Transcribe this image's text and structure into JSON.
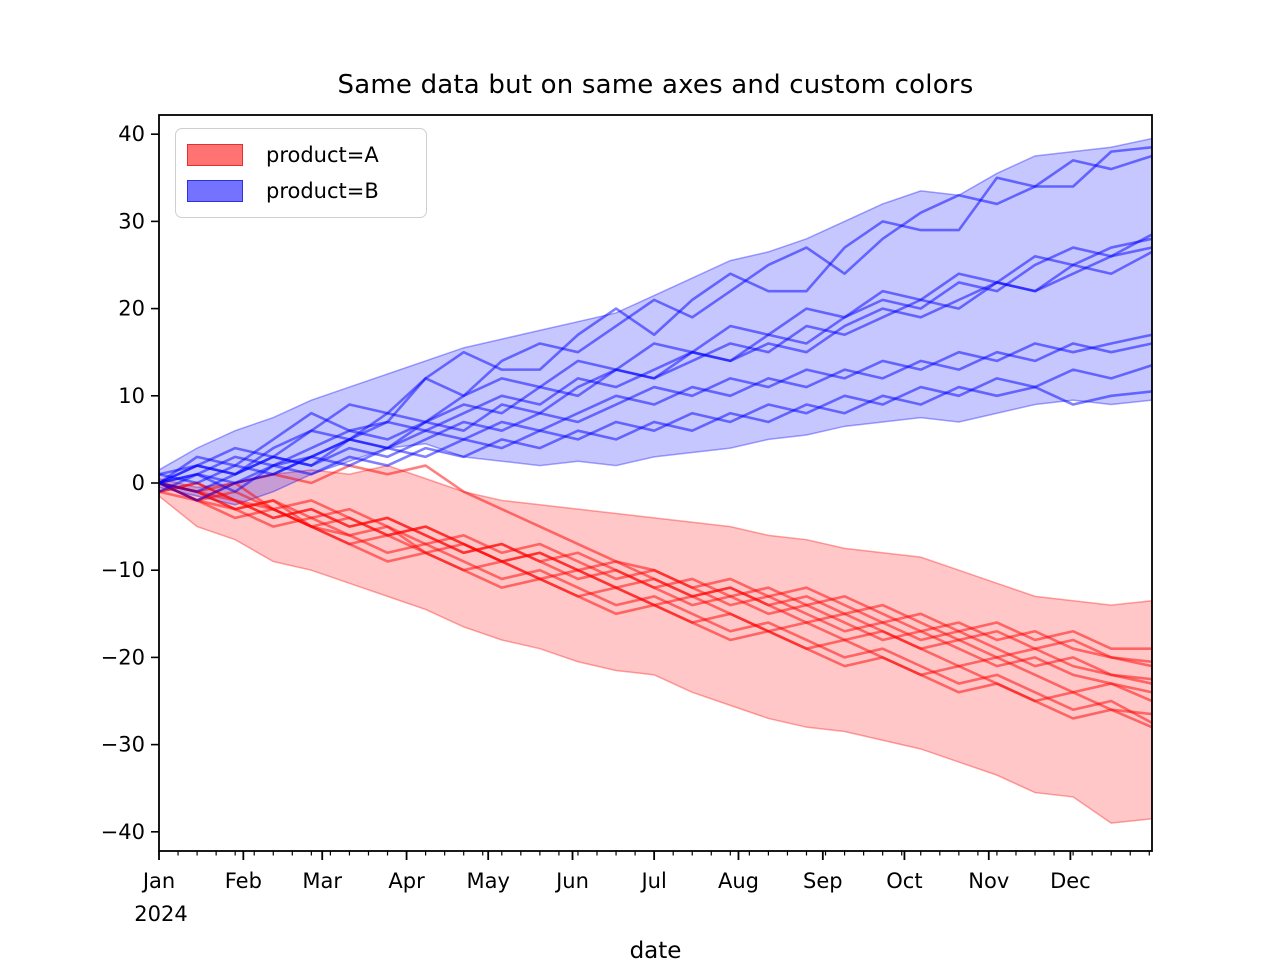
{
  "title": "Same data but on same axes and custom colors",
  "legend": {
    "items": [
      {
        "label": "product=A",
        "color": "#ff0000"
      },
      {
        "label": "product=B",
        "color": "#0000ff"
      }
    ]
  },
  "chart_data": {
    "type": "line",
    "title": "Same data but on same axes and custom colors",
    "xlabel": "date",
    "ylabel": "",
    "x_tick_year": "2024",
    "x_tick_months": [
      "Jan",
      "Feb",
      "Mar",
      "Apr",
      "May",
      "Jun",
      "Jul",
      "Aug",
      "Sep",
      "Oct",
      "Nov",
      "Dec"
    ],
    "month_start_days": [
      0,
      31,
      60,
      91,
      121,
      152,
      182,
      213,
      244,
      274,
      305,
      335
    ],
    "minor_tick_interval_days": 7,
    "xlim_days": [
      0,
      365
    ],
    "ylim": [
      -42.2,
      42.2
    ],
    "yticks": [
      -40,
      -30,
      -20,
      -10,
      0,
      10,
      20,
      30,
      40
    ],
    "x_days": [
      0,
      14,
      28,
      42,
      56,
      70,
      84,
      98,
      112,
      126,
      140,
      154,
      168,
      182,
      196,
      210,
      224,
      238,
      252,
      266,
      280,
      294,
      308,
      322,
      336,
      350,
      365
    ],
    "series": [
      {
        "name": "product=A",
        "color": "#ff0000",
        "band_alpha": 0.22,
        "line_alpha": 0.5,
        "band": {
          "upper": [
            0.5,
            -0.5,
            0,
            1,
            1.5,
            1,
            2,
            0.5,
            -1,
            -2,
            -2.5,
            -3,
            -3.5,
            -4,
            -4.5,
            -5,
            -6,
            -6.5,
            -7.5,
            -8,
            -8.5,
            -10,
            -11.5,
            -13,
            -13.5,
            -14,
            -13.5
          ],
          "lower": [
            -1.5,
            -5,
            -6.5,
            -9,
            -10,
            -11.5,
            -13,
            -14.5,
            -16.5,
            -18,
            -19,
            -20.5,
            -21.5,
            -22,
            -24,
            -25.5,
            -27,
            -28,
            -28.5,
            -29.5,
            -30.5,
            -32,
            -33.5,
            -35.5,
            -36,
            -39,
            -38.5
          ]
        },
        "lines": [
          [
            0,
            -1,
            -3,
            -2,
            -4,
            -3,
            -5,
            -7,
            -6,
            -8,
            -7,
            -9,
            -11,
            -10,
            -12,
            -11,
            -13,
            -12,
            -14,
            -16,
            -15,
            -17,
            -16,
            -18,
            -17,
            -19,
            -19
          ],
          [
            -1,
            0,
            -2,
            -4,
            -3,
            -5,
            -4,
            -6,
            -8,
            -7,
            -9,
            -8,
            -10,
            -12,
            -11,
            -13,
            -12,
            -14,
            -13,
            -15,
            -17,
            -16,
            -18,
            -17,
            -19,
            -20,
            -20.5
          ],
          [
            0,
            -2,
            -1,
            -3,
            -5,
            -4,
            -6,
            -5,
            -7,
            -9,
            -8,
            -10,
            -9,
            -11,
            -13,
            -12,
            -14,
            -13,
            -15,
            -14,
            -16,
            -18,
            -17,
            -19,
            -18,
            -20,
            -21
          ],
          [
            0,
            -1,
            0,
            1,
            0,
            2,
            1,
            2,
            -1,
            -3,
            -5,
            -7,
            -9,
            -10,
            -12,
            -14,
            -13,
            -15,
            -17,
            -16,
            -18,
            -17,
            -19,
            -21,
            -20,
            -22,
            -22.5
          ],
          [
            -1,
            -2,
            0,
            -3,
            -2,
            -4,
            -6,
            -5,
            -7,
            -9,
            -8,
            -10,
            -12,
            -11,
            -13,
            -12,
            -14,
            -16,
            -15,
            -17,
            -19,
            -18,
            -20,
            -19,
            -21,
            -22,
            -23
          ],
          [
            0,
            -1,
            -2,
            -4,
            -3,
            -5,
            -4,
            -6,
            -8,
            -7,
            -9,
            -11,
            -10,
            -12,
            -14,
            -13,
            -15,
            -14,
            -16,
            -18,
            -17,
            -19,
            -21,
            -20,
            -22,
            -23,
            -24
          ],
          [
            0,
            -2,
            -3,
            -2,
            -5,
            -6,
            -5,
            -8,
            -7,
            -9,
            -11,
            -10,
            -12,
            -14,
            -13,
            -15,
            -17,
            -16,
            -18,
            -17,
            -19,
            -21,
            -20,
            -22,
            -24,
            -23,
            -25
          ],
          [
            -1,
            0,
            -2,
            -3,
            -5,
            -7,
            -6,
            -8,
            -10,
            -9,
            -11,
            -13,
            -12,
            -14,
            -16,
            -15,
            -17,
            -19,
            -18,
            -20,
            -22,
            -21,
            -23,
            -25,
            -24,
            -26,
            -26.5
          ],
          [
            0,
            -1,
            -3,
            -5,
            -4,
            -6,
            -8,
            -7,
            -9,
            -11,
            -10,
            -12,
            -14,
            -13,
            -15,
            -17,
            -16,
            -18,
            -20,
            -19,
            -21,
            -23,
            -22,
            -24,
            -26,
            -25,
            -27.5
          ],
          [
            0,
            -2,
            -4,
            -3,
            -5,
            -7,
            -9,
            -8,
            -10,
            -12,
            -11,
            -13,
            -15,
            -14,
            -16,
            -18,
            -17,
            -19,
            -21,
            -20,
            -22,
            -24,
            -23,
            -25,
            -27,
            -26,
            -28
          ]
        ]
      },
      {
        "name": "product=B",
        "color": "#0000ff",
        "band_alpha": 0.22,
        "line_alpha": 0.5,
        "band": {
          "upper": [
            1.5,
            4,
            6,
            7.5,
            9.5,
            11,
            12.5,
            14,
            15.5,
            16.5,
            17.5,
            18.5,
            19.5,
            21.5,
            23.5,
            25.5,
            26.5,
            28,
            30,
            32,
            33.5,
            33,
            35.5,
            37.5,
            38,
            38.5,
            39.5
          ],
          "lower": [
            -0.5,
            -1.5,
            -2.5,
            -1,
            1,
            2.5,
            4,
            4.5,
            3,
            2.5,
            2,
            2.5,
            2,
            3,
            3.5,
            4,
            5,
            5.5,
            6.5,
            7,
            7.5,
            7,
            8,
            9,
            9.5,
            9,
            9.5
          ]
        },
        "lines": [
          [
            0,
            3,
            2,
            5,
            8,
            6,
            7,
            12,
            15,
            13,
            13,
            17,
            20,
            17,
            21,
            24,
            22,
            22,
            27,
            30,
            29,
            29,
            35,
            34,
            34,
            38,
            38.5
          ],
          [
            1,
            2,
            4,
            3,
            6,
            9,
            8,
            12,
            10,
            14,
            16,
            15,
            18,
            21,
            19,
            22,
            25,
            27,
            24,
            28,
            31,
            33,
            32,
            34,
            37,
            36,
            37.5
          ],
          [
            0,
            -1,
            1,
            3,
            2,
            5,
            4,
            7,
            9,
            8,
            11,
            10,
            13,
            12,
            15,
            14,
            17,
            16,
            19,
            21,
            20,
            23,
            22,
            25,
            27,
            26,
            28.5
          ],
          [
            0,
            2,
            1,
            4,
            6,
            5,
            8,
            7,
            10,
            12,
            11,
            14,
            13,
            16,
            15,
            18,
            17,
            20,
            19,
            22,
            21,
            24,
            23,
            26,
            25,
            27,
            28
          ],
          [
            -1,
            1,
            3,
            2,
            4,
            6,
            5,
            7,
            6,
            9,
            8,
            11,
            13,
            12,
            14,
            16,
            15,
            18,
            17,
            19,
            21,
            20,
            23,
            22,
            24,
            26,
            27
          ],
          [
            0,
            1,
            -1,
            2,
            3,
            5,
            7,
            6,
            8,
            10,
            9,
            12,
            11,
            13,
            15,
            14,
            16,
            15,
            18,
            20,
            19,
            21,
            23,
            22,
            25,
            24,
            26.5
          ],
          [
            0,
            2,
            1,
            3,
            2,
            4,
            3,
            5,
            7,
            6,
            8,
            7,
            9,
            11,
            10,
            12,
            11,
            13,
            12,
            14,
            13,
            15,
            14,
            16,
            15,
            16,
            17
          ],
          [
            1,
            0,
            2,
            1,
            3,
            5,
            4,
            6,
            5,
            7,
            6,
            8,
            10,
            9,
            11,
            10,
            12,
            11,
            13,
            12,
            14,
            13,
            15,
            14,
            16,
            15,
            16
          ],
          [
            0,
            -2,
            0,
            1,
            3,
            2,
            4,
            3,
            5,
            4,
            6,
            5,
            7,
            6,
            8,
            7,
            9,
            8,
            10,
            9,
            11,
            10,
            12,
            11,
            13,
            12,
            13.5
          ],
          [
            0,
            1,
            0,
            2,
            1,
            3,
            2,
            4,
            3,
            5,
            4,
            6,
            5,
            7,
            6,
            8,
            7,
            9,
            8,
            10,
            9,
            11,
            10,
            11,
            9,
            10,
            10.5
          ]
        ]
      }
    ]
  }
}
